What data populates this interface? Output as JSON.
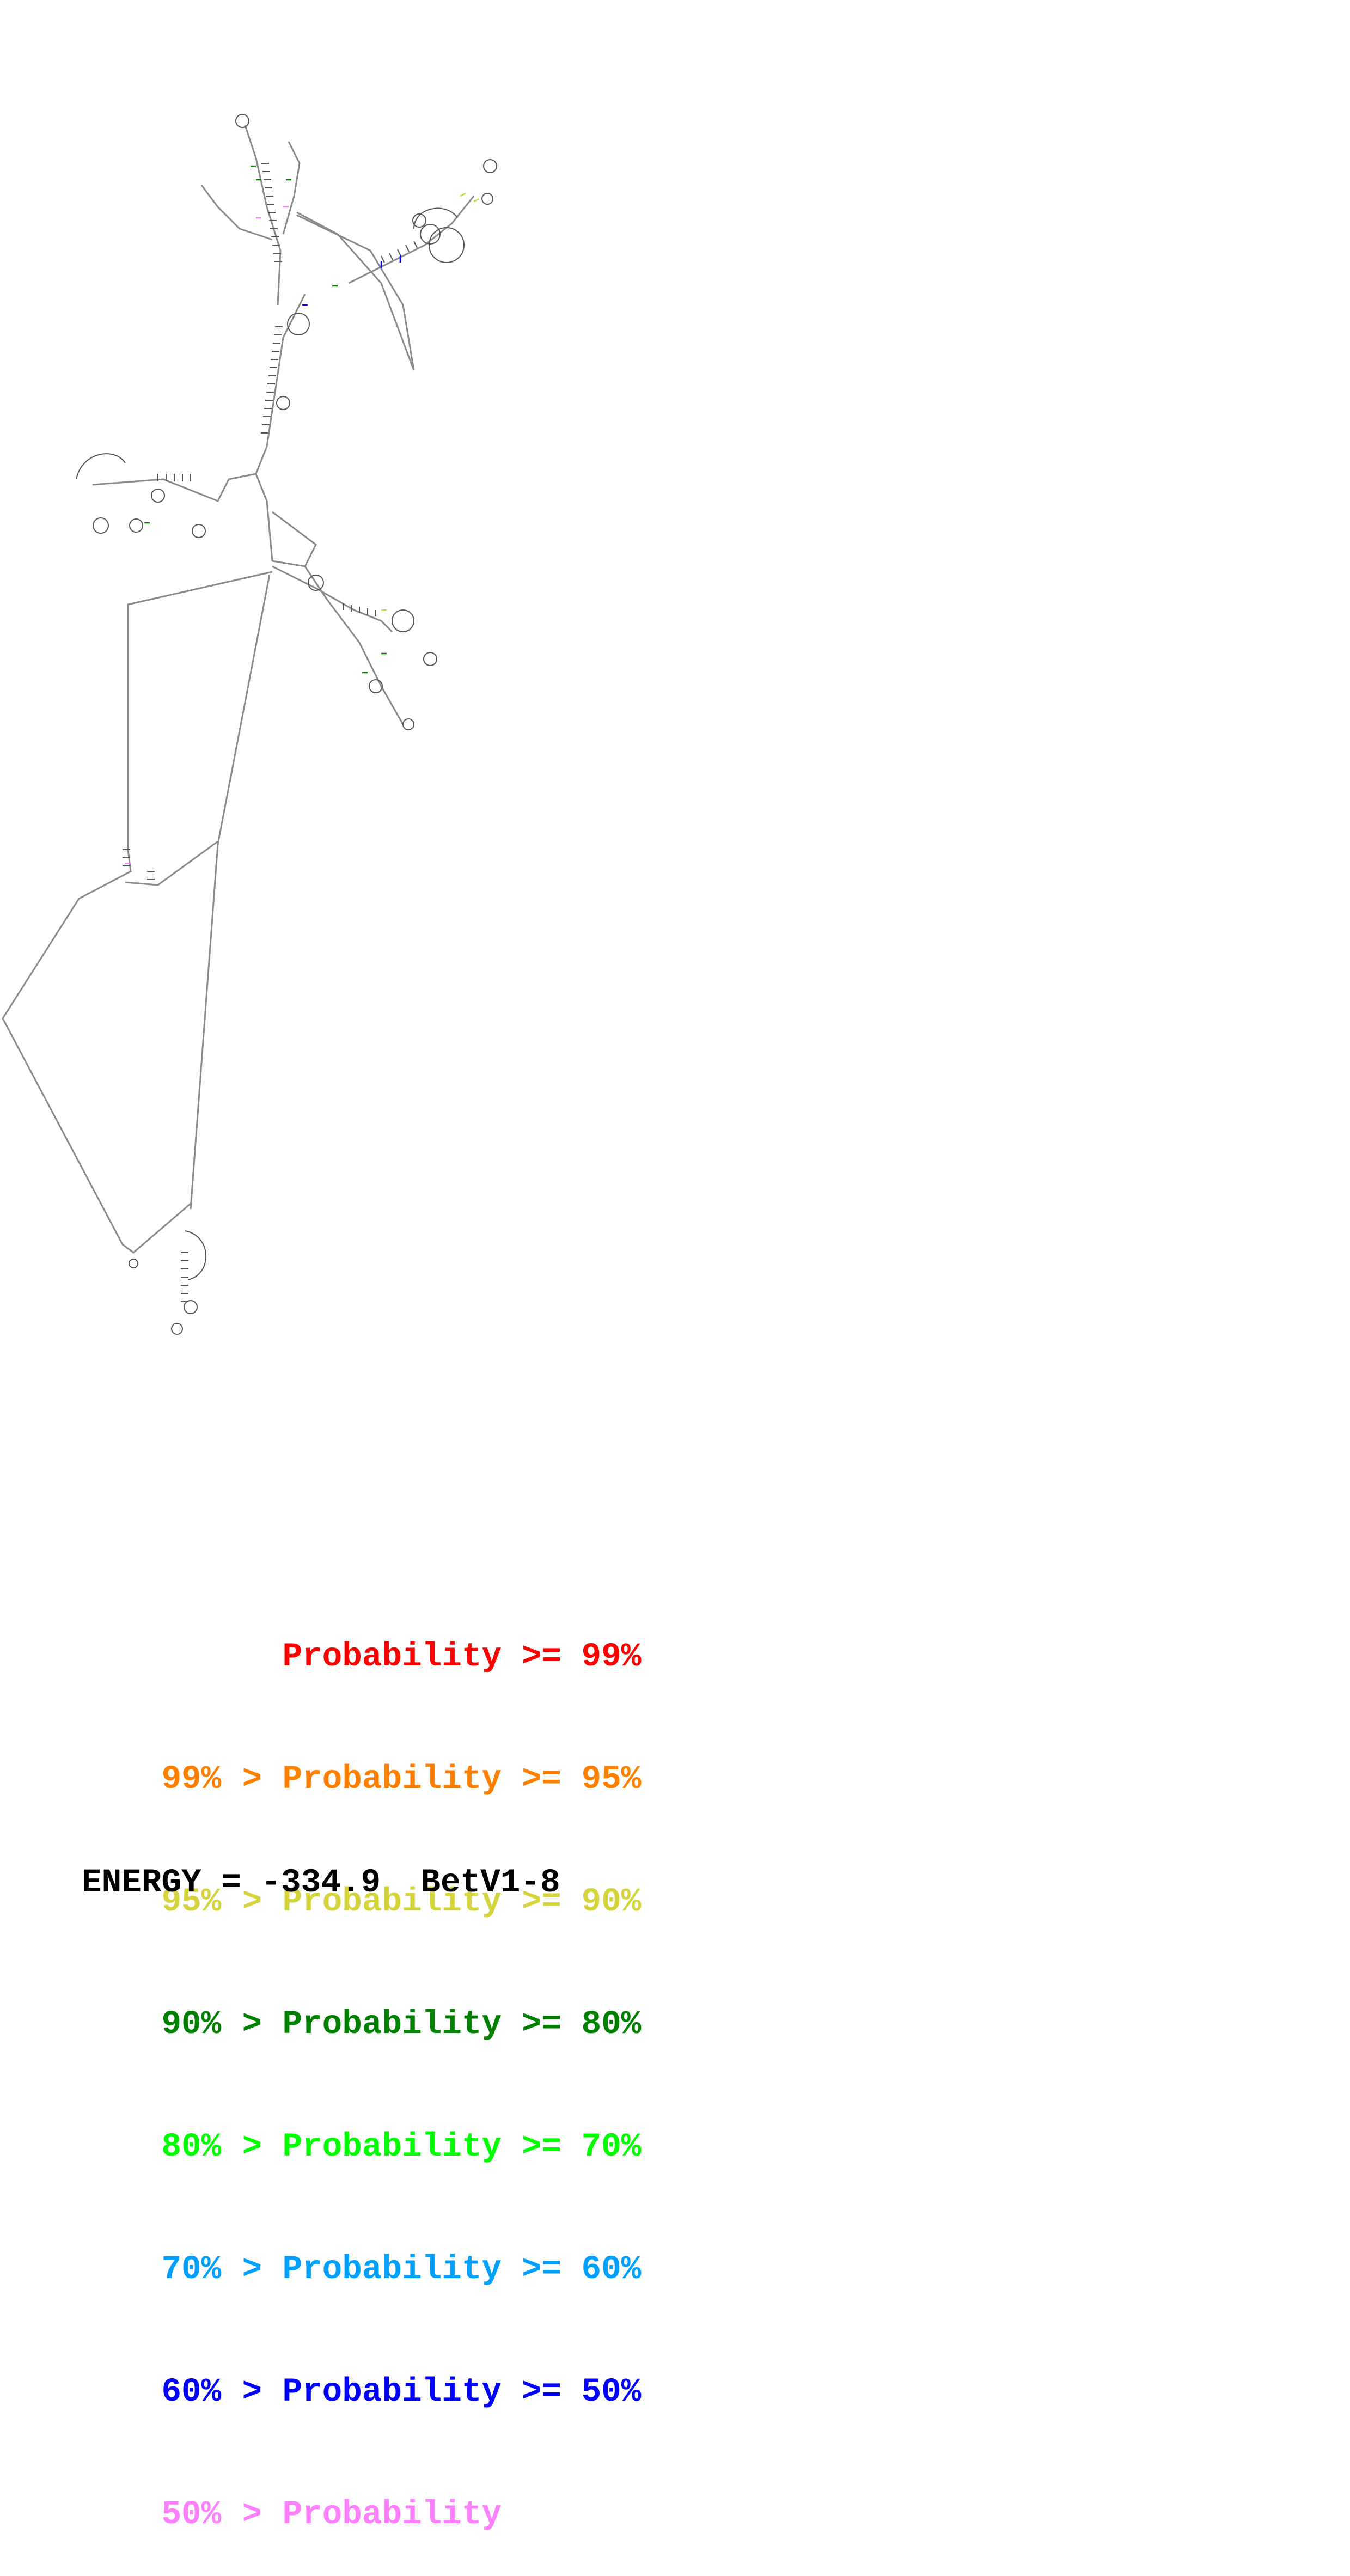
{
  "diagram": {
    "line_color": "#8a8a8a",
    "base_color": "#555555"
  },
  "legend": {
    "rows": [
      {
        "range": "",
        "sep": "",
        "label": "Probability",
        "cmp": ">= 99%",
        "color": "#ff0000"
      },
      {
        "range": "99%",
        "sep": ">",
        "label": "Probability",
        "cmp": ">= 95%",
        "color": "#ff8000"
      },
      {
        "range": "95%",
        "sep": ">",
        "label": "Probability",
        "cmp": ">= 90%",
        "color": "#d4d43c"
      },
      {
        "range": "90%",
        "sep": ">",
        "label": "Probability",
        "cmp": ">= 80%",
        "color": "#008000"
      },
      {
        "range": "80%",
        "sep": ">",
        "label": "Probability",
        "cmp": ">= 70%",
        "color": "#00ff00"
      },
      {
        "range": "70%",
        "sep": ">",
        "label": "Probability",
        "cmp": ">= 60%",
        "color": "#00a0ff"
      },
      {
        "range": "60%",
        "sep": ">",
        "label": "Probability",
        "cmp": ">= 50%",
        "color": "#0000ff"
      },
      {
        "range": "50%",
        "sep": ">",
        "label": "Probability",
        "cmp": "",
        "color": "#ff80ff"
      }
    ]
  },
  "energy": {
    "label": "ENERGY = -334.9",
    "name": "BetV1-8"
  }
}
